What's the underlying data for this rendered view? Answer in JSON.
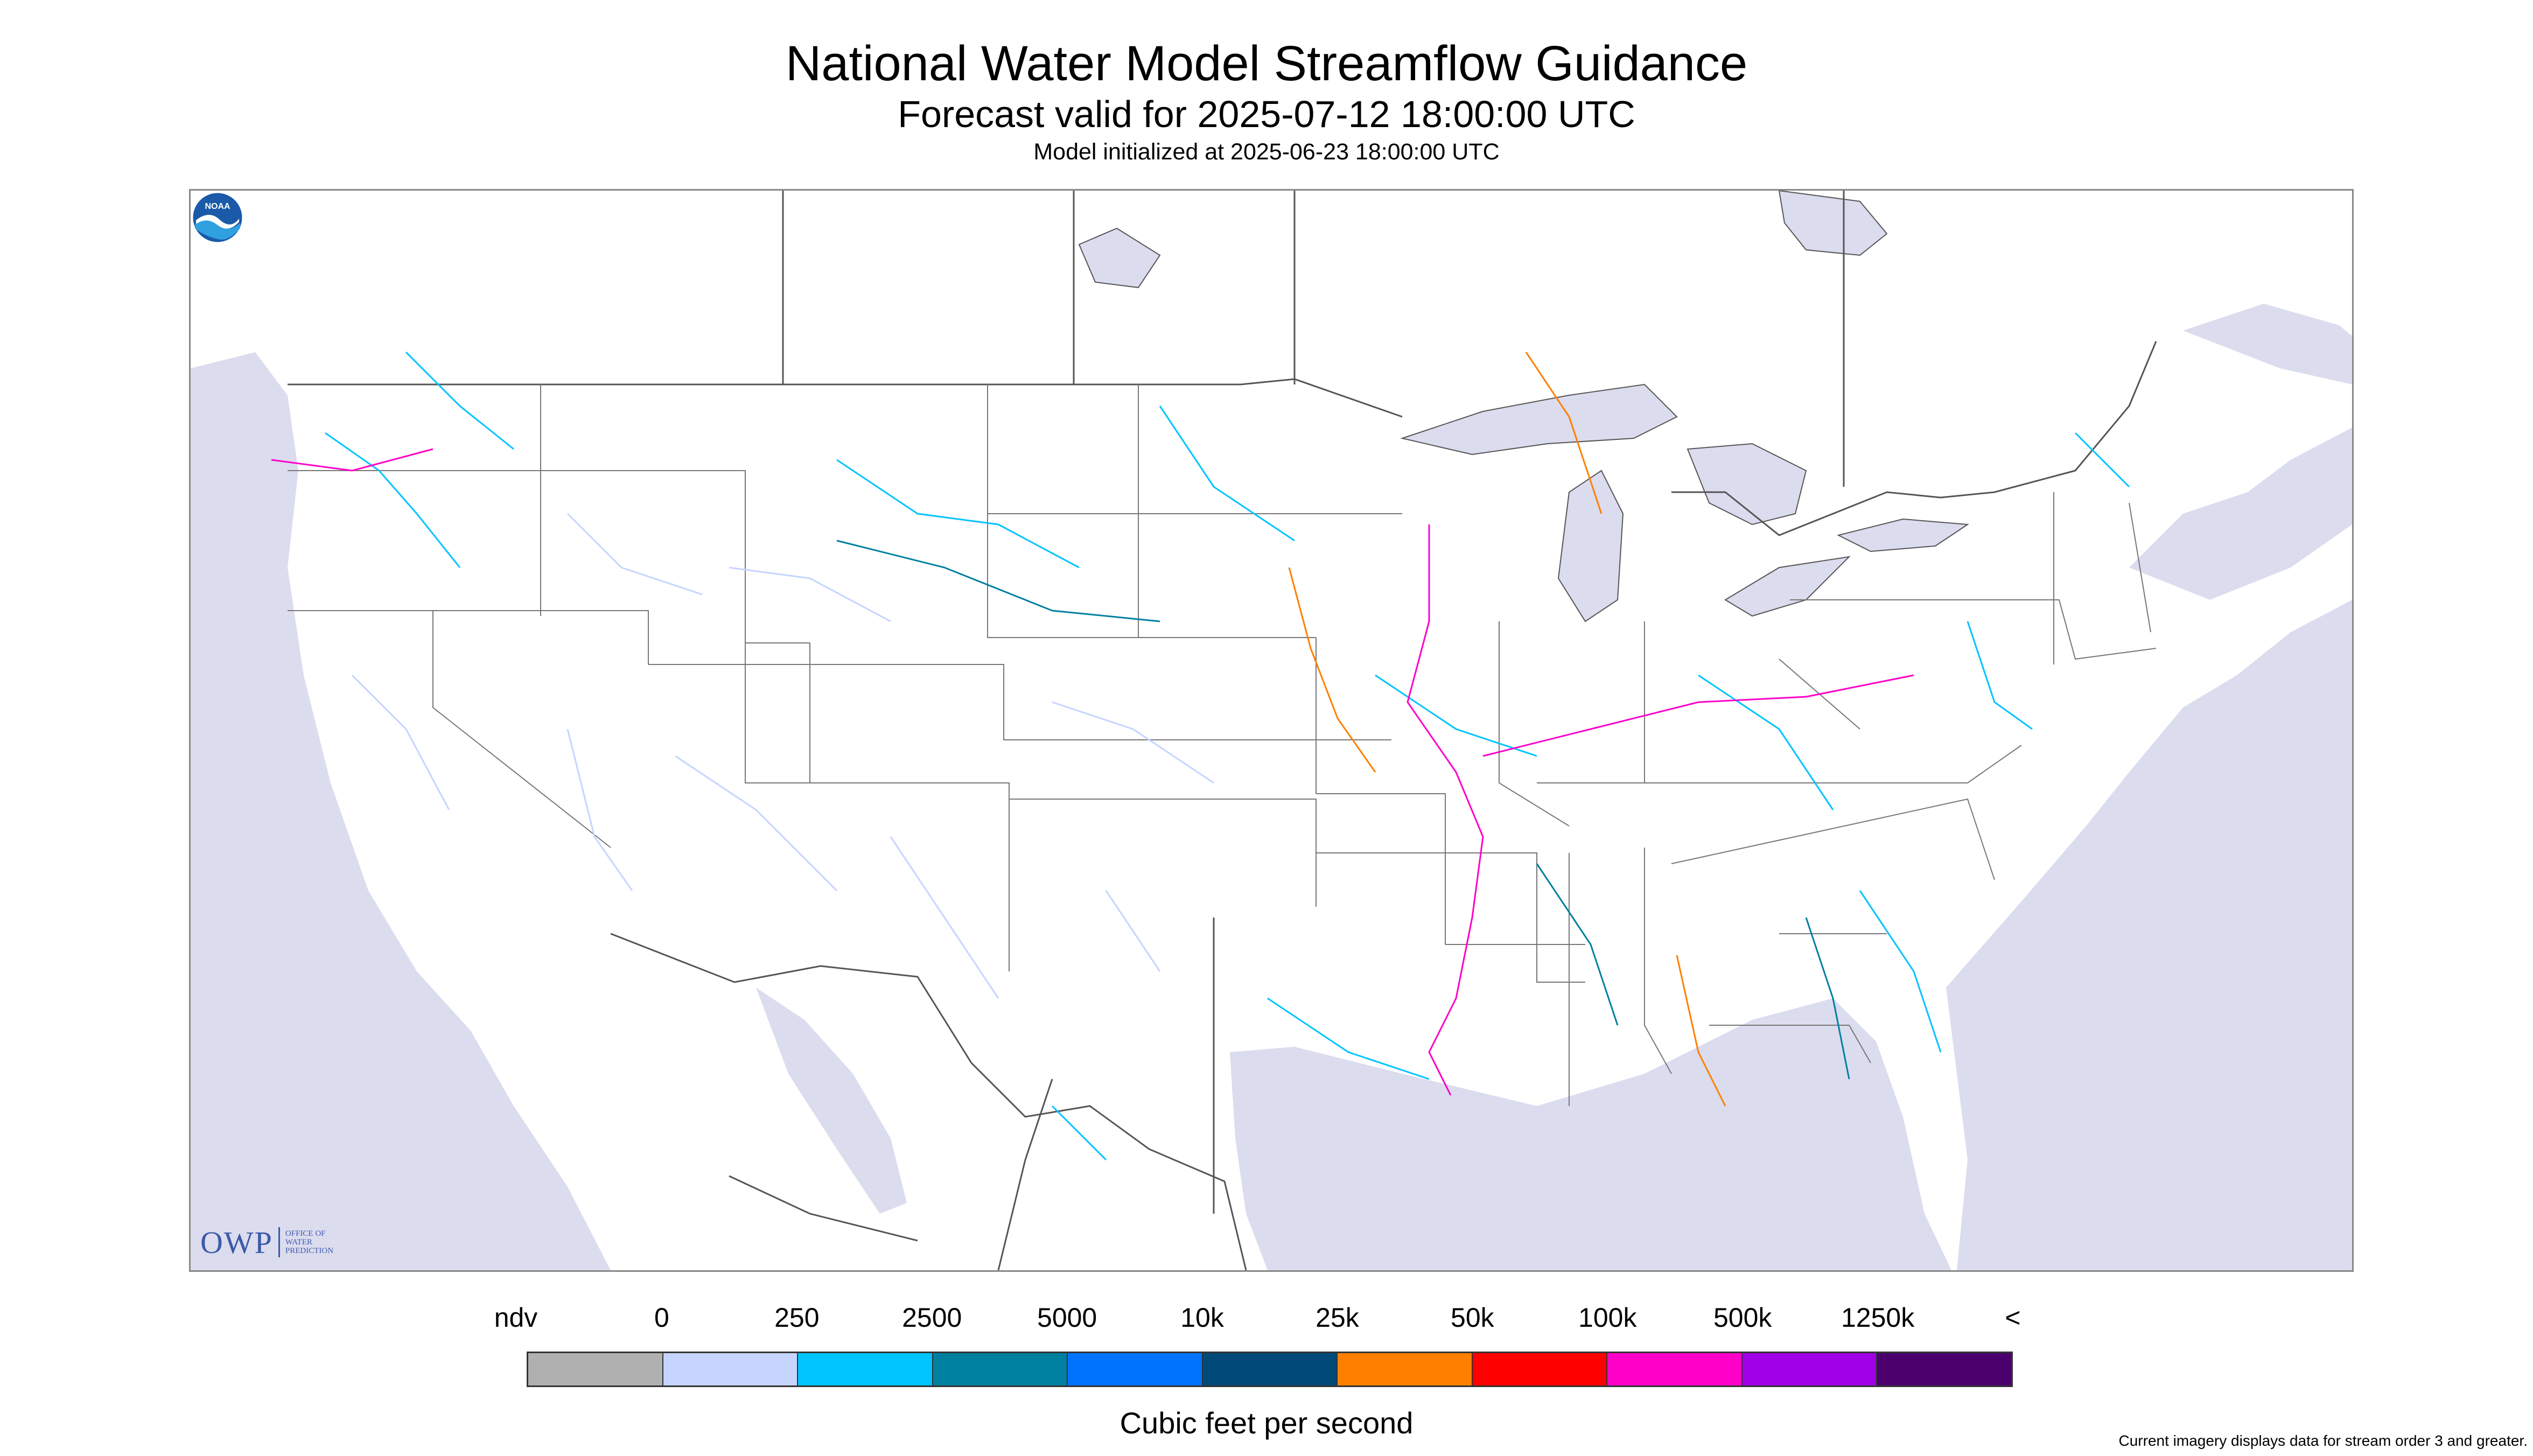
{
  "header": {
    "title": "National Water Model Streamflow Guidance",
    "subtitle": "Forecast valid for 2025-07-12 18:00:00 UTC",
    "init_line": "Model initialized at 2025-06-23 18:00:00 UTC"
  },
  "map": {
    "background_ocean": "#dcdcef",
    "land": "#ffffff",
    "border_color": "#555555",
    "lake_color": "#dcdcef"
  },
  "logos": {
    "owp_text": "OWP",
    "owp_sub": [
      "OFFICE OF",
      "WATER",
      "PREDICTION"
    ],
    "noaa_text": "NOAA"
  },
  "legend": {
    "ticks": [
      "ndv",
      "0",
      "250",
      "2500",
      "5000",
      "10k",
      "25k",
      "50k",
      "100k",
      "500k",
      "1250k",
      "<"
    ],
    "colors": [
      "#b0b0b0",
      "#c6d5ff",
      "#00c4ff",
      "#0080a0",
      "#0073ff",
      "#004a7a",
      "#ff8000",
      "#ff0000",
      "#ff00c8",
      "#a000e6",
      "#4b006e"
    ],
    "unit_label": "Cubic feet per second",
    "footnote": "Current imagery displays data for stream order 3 and greater."
  }
}
